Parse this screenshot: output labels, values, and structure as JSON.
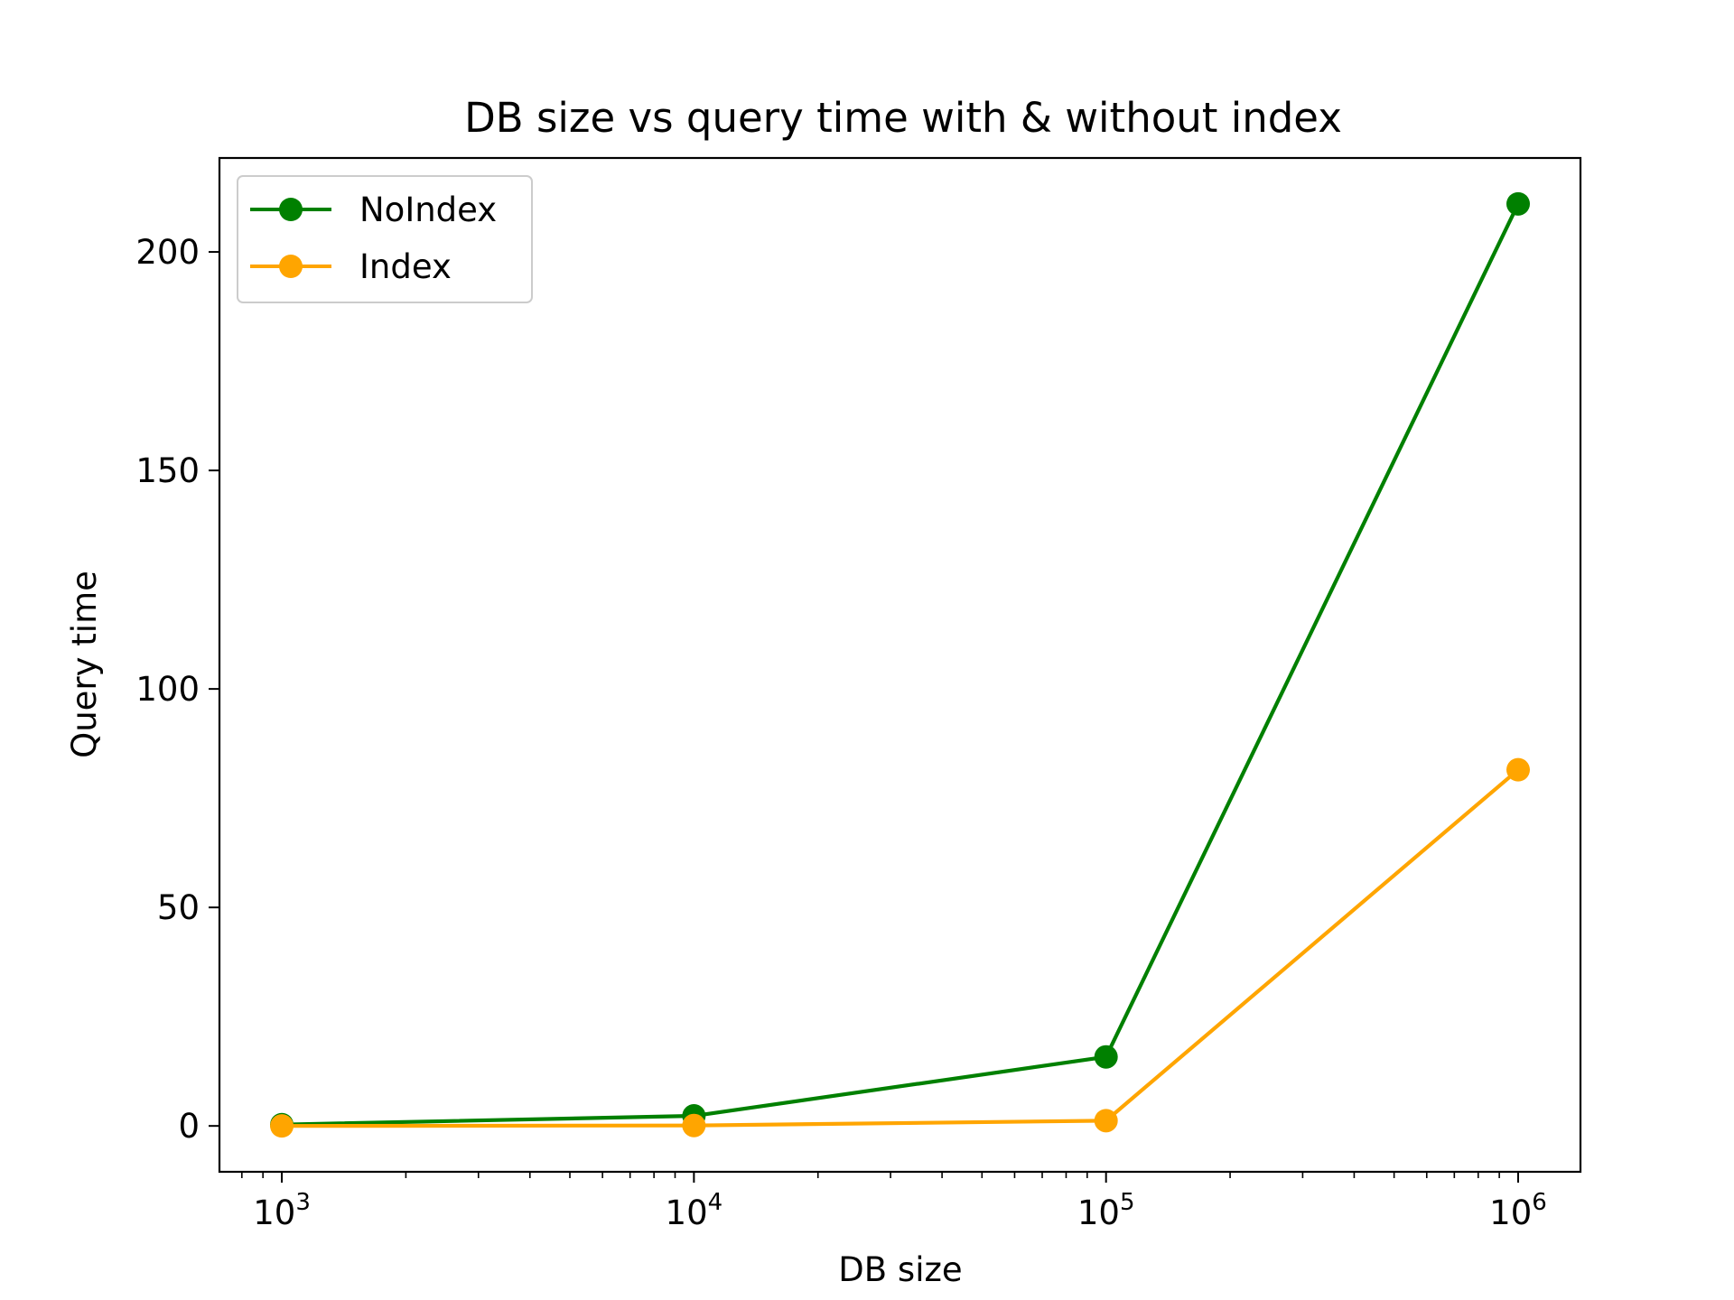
{
  "chart_data": {
    "type": "line",
    "title": "DB size vs query time with & without index",
    "xlabel": "DB size",
    "ylabel": "Query time",
    "x_scale": "log",
    "x": [
      1000,
      10000,
      100000,
      1000000
    ],
    "x_tick_labels": [
      {
        "base": "10",
        "exp": "3"
      },
      {
        "base": "10",
        "exp": "4"
      },
      {
        "base": "10",
        "exp": "5"
      },
      {
        "base": "10",
        "exp": "6"
      }
    ],
    "y_ticks": [
      0,
      50,
      100,
      150,
      200
    ],
    "y_tick_labels": [
      "0",
      "50",
      "100",
      "150",
      "200"
    ],
    "ylim": [
      -10.5,
      221.5
    ],
    "grid": false,
    "legend": "upper-left",
    "series": [
      {
        "name": "NoIndex",
        "color": "#008000",
        "marker": "circle",
        "values": [
          0.3,
          2.3,
          15.8,
          211.0
        ]
      },
      {
        "name": "Index",
        "color": "#FFA500",
        "marker": "circle",
        "values": [
          0.0,
          0.1,
          1.2,
          81.5
        ]
      }
    ]
  }
}
